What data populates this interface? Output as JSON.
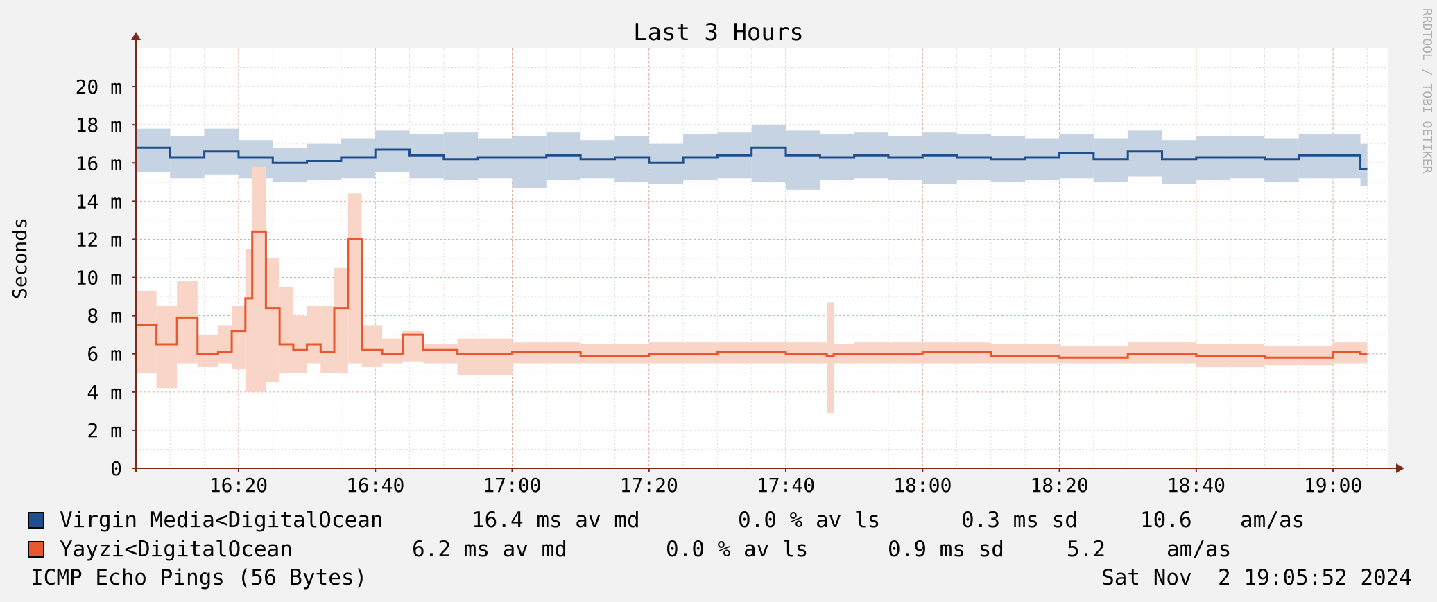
{
  "chart_data": {
    "type": "line",
    "title": "Last 3 Hours",
    "ylabel": "Seconds",
    "watermark": "RRDTOOL / TOBI OETIKER",
    "ylim": [
      0,
      0.022
    ],
    "y_ticks": [
      0,
      0.002,
      0.004,
      0.006,
      0.008,
      0.01,
      0.012,
      0.014,
      0.016,
      0.018,
      0.02
    ],
    "y_tick_labels": [
      "0",
      "2 m",
      "4 m",
      "6 m",
      "8 m",
      "10 m",
      "12 m",
      "14 m",
      "16 m",
      "18 m",
      "20 m"
    ],
    "x_start": "16:05",
    "x_end": "19:08",
    "x_ticks": [
      "16:20",
      "16:40",
      "17:00",
      "17:20",
      "17:40",
      "18:00",
      "18:20",
      "18:40",
      "19:00"
    ],
    "grid": true,
    "series": [
      {
        "name": "Virgin Media<DigitalOcean",
        "color": "#1f4e8c",
        "band_color": "#c5d3e3",
        "times": [
          "16:05",
          "16:10",
          "16:15",
          "16:20",
          "16:25",
          "16:30",
          "16:35",
          "16:40",
          "16:45",
          "16:50",
          "16:55",
          "17:00",
          "17:05",
          "17:10",
          "17:15",
          "17:20",
          "17:25",
          "17:30",
          "17:35",
          "17:40",
          "17:45",
          "17:50",
          "17:55",
          "18:00",
          "18:05",
          "18:10",
          "18:15",
          "18:20",
          "18:25",
          "18:30",
          "18:35",
          "18:40",
          "18:45",
          "18:50",
          "18:55",
          "19:00",
          "19:04"
        ],
        "values": [
          0.0168,
          0.0163,
          0.0166,
          0.0163,
          0.016,
          0.0161,
          0.0163,
          0.0167,
          0.0164,
          0.0162,
          0.0163,
          0.0163,
          0.0164,
          0.0162,
          0.0163,
          0.016,
          0.0163,
          0.0164,
          0.0168,
          0.0164,
          0.0163,
          0.0164,
          0.0163,
          0.0164,
          0.0163,
          0.0162,
          0.0163,
          0.0165,
          0.0162,
          0.0166,
          0.0162,
          0.0163,
          0.0163,
          0.0162,
          0.0164,
          0.0164,
          0.0157
        ],
        "band_low": [
          0.0155,
          0.0152,
          0.0154,
          0.0152,
          0.015,
          0.0151,
          0.0152,
          0.0155,
          0.0152,
          0.0151,
          0.0152,
          0.0147,
          0.0151,
          0.0152,
          0.015,
          0.0149,
          0.0151,
          0.0152,
          0.015,
          0.0146,
          0.0151,
          0.0152,
          0.0151,
          0.0149,
          0.0151,
          0.015,
          0.0151,
          0.0152,
          0.015,
          0.0153,
          0.0149,
          0.0151,
          0.0152,
          0.015,
          0.0152,
          0.0152,
          0.0148
        ],
        "band_high": [
          0.0178,
          0.0174,
          0.0178,
          0.0172,
          0.0168,
          0.017,
          0.0173,
          0.0177,
          0.0175,
          0.0176,
          0.0173,
          0.0174,
          0.0176,
          0.0172,
          0.0174,
          0.017,
          0.0175,
          0.0176,
          0.018,
          0.0177,
          0.0175,
          0.0176,
          0.0174,
          0.0176,
          0.0175,
          0.0174,
          0.0173,
          0.0175,
          0.0173,
          0.0177,
          0.0172,
          0.0174,
          0.0174,
          0.0173,
          0.0175,
          0.0175,
          0.017
        ]
      },
      {
        "name": "Yayzi<DigitalOcean",
        "color": "#e8572e",
        "band_color": "#f8d5c6",
        "times": [
          "16:05",
          "16:08",
          "16:11",
          "16:14",
          "16:17",
          "16:19",
          "16:21",
          "16:22",
          "16:24",
          "16:26",
          "16:28",
          "16:30",
          "16:32",
          "16:34",
          "16:36",
          "16:38",
          "16:41",
          "16:44",
          "16:47",
          "16:52",
          "17:00",
          "17:10",
          "17:20",
          "17:30",
          "17:40",
          "17:46",
          "17:47",
          "17:50",
          "18:00",
          "18:10",
          "18:20",
          "18:30",
          "18:40",
          "18:50",
          "19:00",
          "19:04"
        ],
        "values": [
          0.0075,
          0.0065,
          0.0079,
          0.006,
          0.0061,
          0.0072,
          0.0089,
          0.0124,
          0.0084,
          0.0065,
          0.0062,
          0.0065,
          0.0061,
          0.0084,
          0.012,
          0.0062,
          0.006,
          0.007,
          0.0062,
          0.006,
          0.0061,
          0.0059,
          0.006,
          0.0061,
          0.006,
          0.0059,
          0.006,
          0.006,
          0.0061,
          0.0059,
          0.0058,
          0.006,
          0.0059,
          0.0058,
          0.0061,
          0.006
        ],
        "band_low": [
          0.005,
          0.0042,
          0.0055,
          0.0053,
          0.0055,
          0.0052,
          0.004,
          0.004,
          0.0045,
          0.005,
          0.005,
          0.0055,
          0.005,
          0.005,
          0.0055,
          0.0053,
          0.0055,
          0.0056,
          0.0055,
          0.0049,
          0.0055,
          0.0055,
          0.0055,
          0.0055,
          0.0055,
          0.0029,
          0.0055,
          0.0055,
          0.0055,
          0.0055,
          0.0055,
          0.0055,
          0.0053,
          0.0054,
          0.0055,
          0.0055
        ],
        "band_high": [
          0.0093,
          0.0085,
          0.0098,
          0.007,
          0.0075,
          0.0085,
          0.0115,
          0.0158,
          0.011,
          0.0095,
          0.008,
          0.0085,
          0.0085,
          0.0105,
          0.0144,
          0.0075,
          0.0068,
          0.0072,
          0.0065,
          0.0068,
          0.0066,
          0.0065,
          0.0066,
          0.0066,
          0.0066,
          0.0087,
          0.0065,
          0.0066,
          0.0066,
          0.0065,
          0.0064,
          0.0066,
          0.0065,
          0.0064,
          0.0066,
          0.0066
        ]
      }
    ]
  },
  "legend": [
    {
      "name": "Virgin Media<DigitalOcean",
      "avg": "16.4 ms av md",
      "loss": "0.0 % av ls",
      "sd": "0.3 ms sd",
      "ratio": "10.6",
      "ratio_unit": "am/as",
      "color": "#1f4e8c"
    },
    {
      "name": "Yayzi<DigitalOcean",
      "avg": "6.2 ms av md",
      "loss": "0.0 % av ls",
      "sd": "0.9 ms sd",
      "ratio": "5.2",
      "ratio_unit": "am/as",
      "color": "#e8572e"
    }
  ],
  "footer": {
    "left": "ICMP Echo Pings (56 Bytes)",
    "right": "Sat Nov  2 19:05:52 2024"
  }
}
